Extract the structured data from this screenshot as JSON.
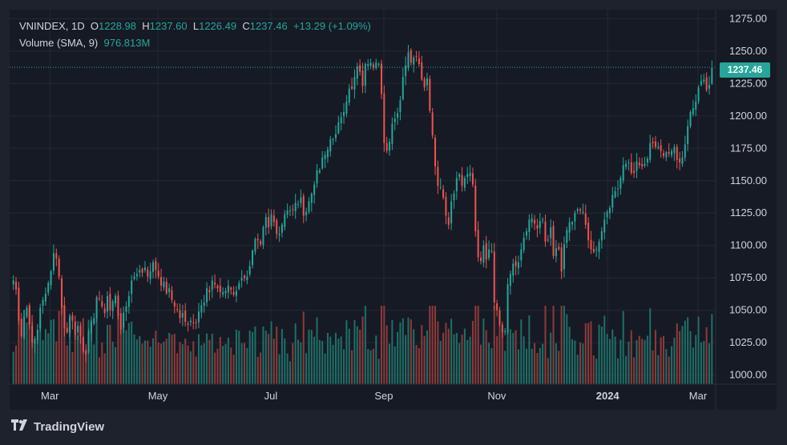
{
  "window": {
    "brand": "TradingView"
  },
  "legend": {
    "symbol": "VNINDEX, 1D",
    "open_label": "O",
    "open_value": "1228.98",
    "high_label": "H",
    "high_value": "1237.60",
    "low_label": "L",
    "low_value": "1226.49",
    "close_label": "C",
    "close_value": "1237.46",
    "change": "+13.29 (+1.09%)",
    "volume_label": "Volume (SMA, 9)",
    "volume_value": "976.813M"
  },
  "last_price_badge": "1237.46",
  "colors": {
    "background": "#161a25",
    "grid": "#242832",
    "up": "#26a69a",
    "down": "#ef5350",
    "up_volume": "#1f6f67",
    "down_volume": "#8e3a3a",
    "text": "#d1d4dc",
    "axis_text": "#d1d4dc"
  },
  "chart_data": {
    "type": "candlestick",
    "symbol": "VNINDEX",
    "interval": "1D",
    "y_axis": {
      "ticks": [
        "1275.00",
        "1250.00",
        "1225.00",
        "1200.00",
        "1175.00",
        "1150.00",
        "1125.00",
        "1100.00",
        "1075.00",
        "1050.00",
        "1025.00",
        "1000.00"
      ],
      "ylim": [
        993,
        1282
      ]
    },
    "x_axis": {
      "ticks": [
        "Mar",
        "May",
        "Jul",
        "Sep",
        "Nov",
        "2024",
        "Mar"
      ],
      "bold_ticks": [
        "2024"
      ]
    },
    "last_price": 1237.46,
    "grid": true,
    "series": [
      {
        "name": "VNINDEX",
        "style": "candles",
        "closes": [
          1073,
          1066,
          1042,
          1030,
          1045,
          1052,
          1039,
          1025,
          1028,
          1035,
          1052,
          1058,
          1063,
          1071,
          1080,
          1094,
          1090,
          1076,
          1052,
          1036,
          1033,
          1045,
          1042,
          1031,
          1038,
          1030,
          1018,
          1016,
          1034,
          1041,
          1044,
          1060,
          1059,
          1053,
          1048,
          1061,
          1050,
          1057,
          1061,
          1046,
          1035,
          1048,
          1053,
          1061,
          1073,
          1076,
          1078,
          1081,
          1079,
          1083,
          1076,
          1080,
          1087,
          1081,
          1076,
          1069,
          1072,
          1063,
          1067,
          1058,
          1053,
          1051,
          1044,
          1048,
          1041,
          1039,
          1042,
          1040,
          1040,
          1049,
          1054,
          1056,
          1067,
          1064,
          1073,
          1070,
          1067,
          1064,
          1064,
          1065,
          1069,
          1066,
          1062,
          1065,
          1071,
          1075,
          1075,
          1076,
          1084,
          1096,
          1105,
          1104,
          1101,
          1114,
          1122,
          1114,
          1124,
          1118,
          1109,
          1109,
          1116,
          1124,
          1127,
          1127,
          1128,
          1133,
          1132,
          1137,
          1123,
          1126,
          1134,
          1140,
          1147,
          1158,
          1158,
          1168,
          1170,
          1174,
          1182,
          1182,
          1186,
          1195,
          1199,
          1203,
          1211,
          1221,
          1221,
          1230,
          1238,
          1234,
          1223,
          1240,
          1240,
          1241,
          1237,
          1241,
          1240,
          1217,
          1179,
          1173,
          1180,
          1194,
          1198,
          1202,
          1212,
          1230,
          1239,
          1249,
          1241,
          1245,
          1246,
          1240,
          1228,
          1222,
          1229,
          1204,
          1185,
          1161,
          1146,
          1145,
          1137,
          1123,
          1116,
          1134,
          1140,
          1152,
          1155,
          1146,
          1152,
          1155,
          1156,
          1147,
          1111,
          1091,
          1088,
          1100,
          1089,
          1097,
          1096,
          1056,
          1050,
          1039,
          1033,
          1034,
          1070,
          1078,
          1086,
          1084,
          1087,
          1097,
          1106,
          1111,
          1120,
          1121,
          1117,
          1113,
          1119,
          1120,
          1103,
          1104,
          1114,
          1092,
          1098,
          1097,
          1080,
          1101,
          1112,
          1118,
          1118,
          1125,
          1128,
          1127,
          1126,
          1116,
          1104,
          1097,
          1095,
          1097,
          1103,
          1111,
          1120,
          1126,
          1129,
          1139,
          1142,
          1144,
          1152,
          1162,
          1163,
          1164,
          1156,
          1156,
          1165,
          1162,
          1161,
          1163,
          1167,
          1179,
          1179,
          1176,
          1176,
          1173,
          1169,
          1172,
          1171,
          1173,
          1176,
          1166,
          1164,
          1168,
          1178,
          1192,
          1203,
          1206,
          1211,
          1222,
          1227,
          1228,
          1220,
          1224,
          1237
        ]
      },
      {
        "name": "Volume (SMA, 9)",
        "style": "histogram",
        "sma_value": "976.813M"
      }
    ]
  }
}
